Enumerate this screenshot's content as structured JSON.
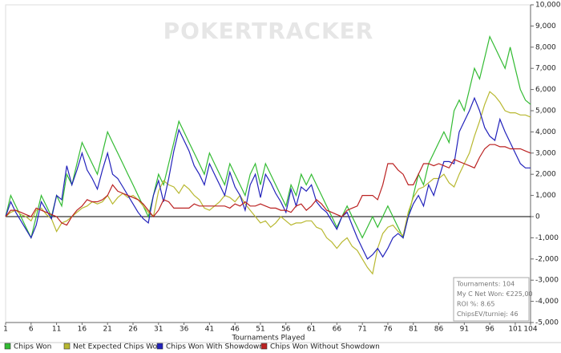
{
  "chart_data": {
    "type": "line",
    "watermark": "POKERTRACKER",
    "x_label": "Tournaments Played",
    "x": [
      1,
      2,
      3,
      4,
      5,
      6,
      7,
      8,
      9,
      10,
      11,
      12,
      13,
      14,
      15,
      16,
      17,
      18,
      19,
      20,
      21,
      22,
      23,
      24,
      25,
      26,
      27,
      28,
      29,
      30,
      31,
      32,
      33,
      34,
      35,
      36,
      37,
      38,
      39,
      40,
      41,
      42,
      43,
      44,
      45,
      46,
      47,
      48,
      49,
      50,
      51,
      52,
      53,
      54,
      55,
      56,
      57,
      58,
      59,
      60,
      61,
      62,
      63,
      64,
      65,
      66,
      67,
      68,
      69,
      70,
      71,
      72,
      73,
      74,
      75,
      76,
      77,
      78,
      79,
      80,
      81,
      82,
      83,
      84,
      85,
      86,
      87,
      88,
      89,
      90,
      91,
      92,
      93,
      94,
      95,
      96,
      97,
      98,
      99,
      100,
      101,
      102,
      103,
      104
    ],
    "xlim": [
      1,
      104
    ],
    "xticks": [
      1,
      6,
      11,
      16,
      21,
      26,
      31,
      36,
      41,
      46,
      51,
      56,
      61,
      66,
      71,
      76,
      81,
      86,
      91,
      96,
      101,
      104
    ],
    "ylim": [
      -5000,
      10000
    ],
    "yticks": [
      {
        "value": -5000,
        "label": "-5,000"
      },
      {
        "value": -4000,
        "label": "-4,000"
      },
      {
        "value": -3000,
        "label": "-3,000"
      },
      {
        "value": -2000,
        "label": "-2,000"
      },
      {
        "value": -1000,
        "label": "-1,000"
      },
      0,
      {
        "value": 1000,
        "label": "1,000"
      },
      {
        "value": 2000,
        "label": "2,000"
      },
      {
        "value": 3000,
        "label": "3,000"
      },
      {
        "value": 4000,
        "label": "4,000"
      },
      {
        "value": 5000,
        "label": "5,000"
      },
      {
        "value": 6000,
        "label": "6,000"
      },
      {
        "value": 7000,
        "label": "7,000"
      },
      {
        "value": 8000,
        "label": "8,000"
      },
      {
        "value": 9000,
        "label": "9,000"
      },
      {
        "value": 10000,
        "label": "10,000"
      }
    ],
    "series": [
      {
        "name": "Chips Won",
        "color": "#33bb33",
        "values": [
          0,
          1000,
          500,
          0,
          -500,
          -1000,
          0,
          1000,
          500,
          0,
          1000,
          500,
          2000,
          1500,
          2500,
          3500,
          3000,
          2500,
          2000,
          3000,
          4000,
          3500,
          3000,
          2500,
          2000,
          1500,
          1000,
          500,
          0,
          1000,
          2000,
          1500,
          2500,
          3500,
          4500,
          4000,
          3500,
          3000,
          2500,
          2000,
          3000,
          2500,
          2000,
          1500,
          2500,
          2000,
          1500,
          1000,
          2000,
          2500,
          1500,
          2500,
          2000,
          1500,
          1000,
          500,
          1500,
          1000,
          2000,
          1500,
          2000,
          1500,
          1000,
          500,
          0,
          -500,
          0,
          500,
          0,
          -500,
          -1000,
          -500,
          0,
          -500,
          0,
          500,
          0,
          -500,
          -1000,
          0,
          1000,
          2000,
          1500,
          2500,
          3000,
          3500,
          4000,
          3500,
          5000,
          5500,
          5000,
          6000,
          7000,
          6500,
          7500,
          8500,
          8000,
          7500,
          7000,
          8000,
          7000,
          6000,
          5500,
          5300
        ]
      },
      {
        "name": "Net Expected Chips Won",
        "color": "#b8b830",
        "values": [
          0,
          200,
          300,
          100,
          0,
          -200,
          300,
          400,
          100,
          -100,
          -700,
          -300,
          -200,
          0,
          200,
          400,
          500,
          700,
          600,
          700,
          1000,
          600,
          900,
          1100,
          900,
          1000,
          800,
          500,
          200,
          0,
          1200,
          1700,
          1500,
          1400,
          1100,
          1500,
          1300,
          1000,
          800,
          400,
          300,
          500,
          700,
          1000,
          900,
          700,
          1000,
          600,
          300,
          0,
          -300,
          -200,
          -500,
          -300,
          0,
          -200,
          -400,
          -300,
          -300,
          -200,
          -200,
          -500,
          -600,
          -1000,
          -1200,
          -1500,
          -1200,
          -1000,
          -1400,
          -1600,
          -2000,
          -2400,
          -2700,
          -1500,
          -800,
          -500,
          -400,
          -700,
          -900,
          200,
          900,
          1300,
          1400,
          1600,
          1800,
          1800,
          2000,
          1600,
          1400,
          2000,
          2500,
          3000,
          3800,
          4500,
          5300,
          5900,
          5700,
          5400,
          5000,
          4900,
          4900,
          4800,
          4800,
          4700
        ]
      },
      {
        "name": "Chips Won With Showdown",
        "color": "#2222bb",
        "values": [
          0,
          700,
          200,
          -200,
          -600,
          -1000,
          -400,
          700,
          300,
          -100,
          1000,
          800,
          2400,
          1500,
          2200,
          3000,
          2200,
          1800,
          1300,
          2200,
          3000,
          2000,
          1800,
          1400,
          1000,
          600,
          200,
          -100,
          -300,
          1000,
          1700,
          700,
          1800,
          3100,
          4100,
          3600,
          3100,
          2400,
          2000,
          1500,
          2500,
          2000,
          1500,
          1000,
          2100,
          1400,
          1000,
          300,
          1500,
          2000,
          900,
          2000,
          1600,
          1100,
          700,
          200,
          1300,
          500,
          1400,
          1200,
          1500,
          700,
          400,
          200,
          -200,
          -600,
          0,
          200,
          -400,
          -1000,
          -1500,
          -2000,
          -1800,
          -1500,
          -1900,
          -1500,
          -1000,
          -800,
          -1000,
          0,
          600,
          1000,
          500,
          1500,
          1000,
          1800,
          2600,
          2600,
          2500,
          4000,
          4500,
          5000,
          5600,
          5000,
          4200,
          3800,
          3600,
          4600,
          4000,
          3500,
          3000,
          2500,
          2300,
          2300
        ]
      },
      {
        "name": "Chips Won Without Showdown",
        "color": "#bb2222",
        "values": [
          0,
          300,
          300,
          200,
          100,
          0,
          400,
          300,
          200,
          100,
          0,
          -300,
          -400,
          0,
          300,
          500,
          800,
          700,
          700,
          800,
          1000,
          1500,
          1200,
          1100,
          1000,
          900,
          800,
          600,
          300,
          0,
          300,
          800,
          700,
          400,
          400,
          400,
          400,
          600,
          500,
          500,
          500,
          500,
          500,
          500,
          400,
          600,
          500,
          700,
          500,
          500,
          600,
          500,
          400,
          400,
          300,
          300,
          200,
          500,
          600,
          300,
          500,
          800,
          600,
          300,
          200,
          100,
          0,
          300,
          400,
          500,
          1000,
          1000,
          1000,
          800,
          1500,
          2500,
          2500,
          2200,
          2000,
          1500,
          1500,
          2000,
          2500,
          2500,
          2400,
          2500,
          2400,
          2300,
          2700,
          2600,
          2500,
          2400,
          2300,
          2800,
          3200,
          3400,
          3400,
          3300,
          3300,
          3200,
          3200,
          3200,
          3100,
          3000
        ]
      }
    ],
    "info_box": [
      "Tournaments: 104",
      "My C Net Won: €225,00",
      "ROI %: 8.65",
      "ChipsEV/turniej: 46"
    ]
  }
}
